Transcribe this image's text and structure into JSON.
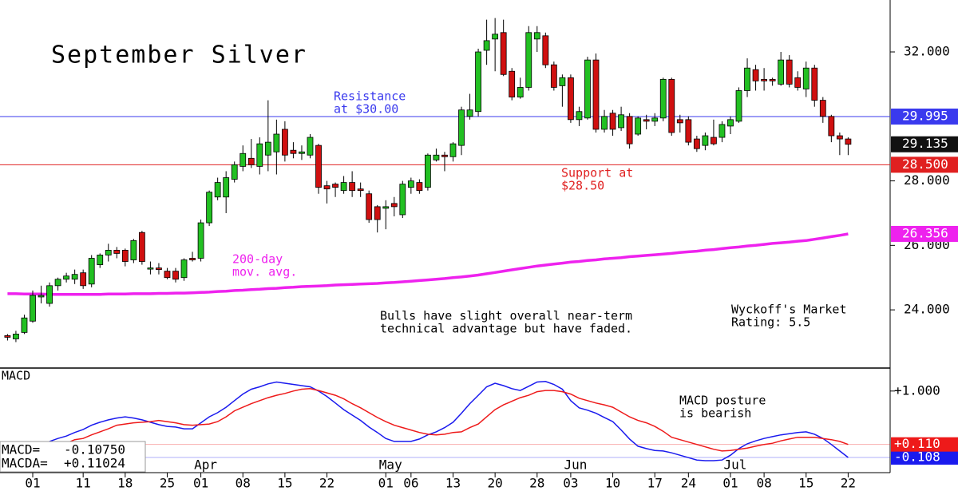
{
  "chart_data": [
    {
      "type": "candlestick",
      "title": "September Silver",
      "categories": [
        null,
        null,
        null,
        "01",
        null,
        null,
        null,
        null,
        null,
        "11",
        null,
        null,
        null,
        null,
        "18",
        null,
        null,
        null,
        null,
        "25",
        null,
        null,
        null,
        "01",
        null,
        null,
        null,
        null,
        "08",
        null,
        null,
        null,
        null,
        "15",
        null,
        null,
        null,
        null,
        "22",
        null,
        null,
        null,
        null,
        null,
        null,
        "01",
        null,
        null,
        "06",
        null,
        null,
        null,
        null,
        "13",
        null,
        null,
        null,
        null,
        "20",
        null,
        null,
        null,
        null,
        "28",
        null,
        null,
        null,
        "03",
        null,
        null,
        null,
        null,
        "10",
        null,
        null,
        null,
        null,
        "17",
        null,
        null,
        null,
        "24",
        null,
        null,
        null,
        null,
        "01",
        null,
        null,
        null,
        "08",
        null,
        null,
        null,
        null,
        "15",
        null,
        null,
        null,
        null,
        "22"
      ],
      "months": [
        null,
        null,
        null,
        null,
        null,
        null,
        null,
        null,
        null,
        null,
        null,
        null,
        null,
        null,
        null,
        null,
        null,
        null,
        null,
        null,
        null,
        null,
        null,
        "Apr",
        null,
        null,
        null,
        null,
        null,
        null,
        null,
        null,
        null,
        null,
        null,
        null,
        null,
        null,
        null,
        null,
        null,
        null,
        null,
        null,
        null,
        "May",
        null,
        null,
        null,
        null,
        null,
        null,
        null,
        null,
        null,
        null,
        null,
        null,
        null,
        null,
        null,
        null,
        null,
        null,
        null,
        null,
        null,
        "Jun",
        null,
        null,
        null,
        null,
        null,
        null,
        null,
        null,
        null,
        null,
        null,
        null,
        null,
        null,
        null,
        null,
        null,
        null,
        "Jul",
        null,
        null,
        null,
        null,
        null,
        null,
        null,
        null,
        null,
        null,
        null,
        null,
        null,
        null
      ],
      "open": [
        23.2,
        23.1,
        23.3,
        23.65,
        24.4,
        24.2,
        24.75,
        24.95,
        24.95,
        25.15,
        24.8,
        25.4,
        25.7,
        25.85,
        25.85,
        25.55,
        26.4,
        25.3,
        25.3,
        25.2,
        25.2,
        25.0,
        25.6,
        25.6,
        26.7,
        27.5,
        27.5,
        28.05,
        28.45,
        28.7,
        28.45,
        28.8,
        28.9,
        29.6,
        28.95,
        28.85,
        28.8,
        29.1,
        27.85,
        27.9,
        27.7,
        27.95,
        27.75,
        27.6,
        27.2,
        27.15,
        27.3,
        26.95,
        27.8,
        27.95,
        27.8,
        28.65,
        28.8,
        28.75,
        29.1,
        30.0,
        30.15,
        32.05,
        32.4,
        32.6,
        31.4,
        30.6,
        30.9,
        32.4,
        32.5,
        31.6,
        30.95,
        31.2,
        29.9,
        29.95,
        31.75,
        29.6,
        30.1,
        29.65,
        30.0,
        29.45,
        29.9,
        29.85,
        29.95,
        31.15,
        29.9,
        29.9,
        29.3,
        29.1,
        29.35,
        29.35,
        29.7,
        29.85,
        30.8,
        31.45,
        31.15,
        31.15,
        31.0,
        31.75,
        31.2,
        30.85,
        31.5,
        30.5,
        30.0,
        29.4,
        29.3
      ],
      "high": [
        23.25,
        23.35,
        23.85,
        24.6,
        24.75,
        24.85,
        25.0,
        25.15,
        25.25,
        25.25,
        25.7,
        25.75,
        26.05,
        25.95,
        25.9,
        26.2,
        26.45,
        25.5,
        25.45,
        25.3,
        25.3,
        25.6,
        25.8,
        26.8,
        27.7,
        28.1,
        28.3,
        28.6,
        29.1,
        29.3,
        29.35,
        30.5,
        29.9,
        29.85,
        29.2,
        29.1,
        29.45,
        29.15,
        28.0,
        27.95,
        28.15,
        28.3,
        27.95,
        27.7,
        27.25,
        27.4,
        27.5,
        28.0,
        28.1,
        28.05,
        28.85,
        29.0,
        28.9,
        29.2,
        30.3,
        30.7,
        32.1,
        33.0,
        33.05,
        33.0,
        31.5,
        31.2,
        32.8,
        32.8,
        32.6,
        31.7,
        31.3,
        31.3,
        30.3,
        31.85,
        31.95,
        30.2,
        30.2,
        30.3,
        30.1,
        30.0,
        30.05,
        30.1,
        31.2,
        31.2,
        30.05,
        30.0,
        29.4,
        29.5,
        29.9,
        29.85,
        30.0,
        30.9,
        31.8,
        31.6,
        31.5,
        31.2,
        32.0,
        31.9,
        31.4,
        31.7,
        31.6,
        30.6,
        30.05,
        29.5,
        29.35
      ],
      "low": [
        23.05,
        23.0,
        23.25,
        23.6,
        24.2,
        24.1,
        24.6,
        24.85,
        24.8,
        24.65,
        24.7,
        25.3,
        25.5,
        25.6,
        25.35,
        25.45,
        25.4,
        25.1,
        25.1,
        24.95,
        24.85,
        24.9,
        25.5,
        25.5,
        26.6,
        27.4,
        27.0,
        27.95,
        28.3,
        28.4,
        28.2,
        28.3,
        28.2,
        28.6,
        28.7,
        28.65,
        28.7,
        27.6,
        27.3,
        27.5,
        27.6,
        27.5,
        27.5,
        26.7,
        26.4,
        26.5,
        26.9,
        26.85,
        27.6,
        27.6,
        27.7,
        28.6,
        28.3,
        28.6,
        28.8,
        29.9,
        30.0,
        31.6,
        31.4,
        31.25,
        30.5,
        30.55,
        30.8,
        32.0,
        31.5,
        30.8,
        30.3,
        29.8,
        29.7,
        29.9,
        29.5,
        29.5,
        29.4,
        29.55,
        29.0,
        29.4,
        29.6,
        29.7,
        29.85,
        29.4,
        29.5,
        29.1,
        28.9,
        28.95,
        29.1,
        29.2,
        29.45,
        29.8,
        30.6,
        30.8,
        30.8,
        30.95,
        30.95,
        30.9,
        30.8,
        30.6,
        30.3,
        29.8,
        29.2,
        28.8,
        28.8
      ],
      "close": [
        23.15,
        23.25,
        23.75,
        24.45,
        24.45,
        24.75,
        24.95,
        25.05,
        25.1,
        24.75,
        25.6,
        25.7,
        25.85,
        25.75,
        25.5,
        26.15,
        25.5,
        25.3,
        25.25,
        25.0,
        24.95,
        25.55,
        25.55,
        26.7,
        27.65,
        27.95,
        28.1,
        28.5,
        28.85,
        28.5,
        29.15,
        29.2,
        29.45,
        28.8,
        28.85,
        28.9,
        29.35,
        27.8,
        27.75,
        27.8,
        27.95,
        27.7,
        27.7,
        26.8,
        26.8,
        27.2,
        27.2,
        27.9,
        28.0,
        27.7,
        28.8,
        28.8,
        28.75,
        29.15,
        30.2,
        30.2,
        32.0,
        32.35,
        32.55,
        31.3,
        30.6,
        30.9,
        32.6,
        32.6,
        31.6,
        30.9,
        31.2,
        29.9,
        30.15,
        31.75,
        29.6,
        30.0,
        29.6,
        30.05,
        29.15,
        29.95,
        29.85,
        29.95,
        31.15,
        29.5,
        29.8,
        29.2,
        29.0,
        29.4,
        29.15,
        29.75,
        29.9,
        30.8,
        31.5,
        31.1,
        31.1,
        31.1,
        31.75,
        31.0,
        30.9,
        31.5,
        30.5,
        30.0,
        29.4,
        29.3,
        29.135
      ],
      "up_color": "#22c022",
      "down_color": "#d01010",
      "last_close_label": "29.135",
      "ylim": [
        22.22,
        33.61
      ],
      "yticks": [
        {
          "value": 24,
          "label": "24.000"
        },
        {
          "value": 26,
          "label": "26.000"
        },
        {
          "value": 28,
          "label": "28.000"
        },
        {
          "value": 32,
          "label": "32.000"
        }
      ],
      "hlines": [
        {
          "value": 29.995,
          "label": "29.995",
          "color": "#3a3aee",
          "text": [
            "Resistance",
            "at $30.00"
          ]
        },
        {
          "value": 28.5,
          "label": "28.500",
          "color": "#e02020",
          "text": [
            "Support at",
            "$28.50"
          ]
        }
      ],
      "moving_average": {
        "color": "#ee22ee",
        "text": [
          "200-day",
          "mov. avg."
        ],
        "last_label": "26.356",
        "values": [
          24.5,
          24.5,
          24.49,
          24.49,
          24.49,
          24.48,
          24.48,
          24.48,
          24.48,
          24.48,
          24.48,
          24.48,
          24.49,
          24.49,
          24.49,
          24.5,
          24.5,
          24.5,
          24.51,
          24.51,
          24.52,
          24.52,
          24.53,
          24.54,
          24.55,
          24.57,
          24.58,
          24.6,
          24.61,
          24.63,
          24.64,
          24.66,
          24.67,
          24.69,
          24.7,
          24.72,
          24.73,
          24.74,
          24.75,
          24.77,
          24.78,
          24.79,
          24.8,
          24.81,
          24.82,
          24.84,
          24.85,
          24.87,
          24.89,
          24.91,
          24.93,
          24.95,
          24.97,
          25.0,
          25.02,
          25.05,
          25.08,
          25.12,
          25.16,
          25.2,
          25.24,
          25.28,
          25.32,
          25.36,
          25.39,
          25.42,
          25.45,
          25.48,
          25.5,
          25.53,
          25.55,
          25.58,
          25.6,
          25.62,
          25.65,
          25.67,
          25.69,
          25.71,
          25.73,
          25.75,
          25.78,
          25.8,
          25.82,
          25.85,
          25.87,
          25.9,
          25.93,
          25.95,
          25.98,
          26.0,
          26.03,
          26.06,
          26.08,
          26.1,
          26.13,
          26.15,
          26.19,
          26.23,
          26.27,
          26.31,
          26.356
        ]
      },
      "annotations": [
        {
          "lines": [
            "Bulls have slight overall near-term",
            "technical advantage but have faded."
          ]
        },
        {
          "lines": [
            "Wyckoff's Market",
            "Rating: 5.5"
          ]
        }
      ]
    },
    {
      "type": "line",
      "title": "MACD",
      "ylim": [
        -0.36,
        1.37
      ],
      "yticks": [
        {
          "value": 1,
          "label": "+1.000"
        }
      ],
      "series": [
        {
          "name": "MACD=",
          "color": "#1a1aee",
          "last_label": "-0.10750",
          "axis_label": "-0.108",
          "values": [
            null,
            null,
            null,
            null,
            null,
            0.16,
            0.21,
            0.25,
            0.31,
            0.36,
            0.43,
            0.48,
            0.52,
            0.55,
            0.57,
            0.55,
            0.52,
            0.48,
            0.44,
            0.41,
            0.4,
            0.37,
            0.37,
            0.47,
            0.57,
            0.64,
            0.73,
            0.84,
            0.95,
            1.03,
            1.07,
            1.12,
            1.15,
            1.13,
            1.11,
            1.09,
            1.07,
            1.0,
            0.91,
            0.8,
            0.69,
            0.6,
            0.51,
            0.4,
            0.31,
            0.21,
            0.16,
            0.16,
            0.16,
            0.2,
            0.27,
            0.32,
            0.39,
            0.48,
            0.63,
            0.79,
            0.93,
            1.07,
            1.13,
            1.09,
            1.04,
            1.01,
            1.08,
            1.15,
            1.16,
            1.11,
            1.03,
            0.84,
            0.72,
            0.68,
            0.63,
            0.56,
            0.49,
            0.35,
            0.2,
            0.08,
            0.04,
            0.01,
            0,
            -0.03,
            -0.07,
            -0.11,
            -0.15,
            -0.16,
            -0.16,
            -0.15,
            -0.07,
            0.04,
            0.12,
            0.17,
            0.21,
            0.24,
            0.27,
            0.29,
            0.31,
            0.32,
            0.28,
            0.21,
            0.11,
            0,
            -0.1075
          ]
        },
        {
          "name": "MACDA=",
          "color": "#ee1a1a",
          "last_label": "+0.11024",
          "axis_label": "+0.110",
          "values": [
            null,
            null,
            null,
            null,
            null,
            0.07,
            0.11,
            0.13,
            0.19,
            0.21,
            0.27,
            0.32,
            0.37,
            0.43,
            0.45,
            0.47,
            0.48,
            0.49,
            0.51,
            0.49,
            0.47,
            0.44,
            0.43,
            0.44,
            0.45,
            0.49,
            0.57,
            0.67,
            0.73,
            0.79,
            0.84,
            0.89,
            0.93,
            0.96,
            1.0,
            1.03,
            1.04,
            1.01,
            0.97,
            0.93,
            0.87,
            0.79,
            0.72,
            0.64,
            0.56,
            0.49,
            0.43,
            0.39,
            0.35,
            0.31,
            0.28,
            0.27,
            0.28,
            0.31,
            0.32,
            0.39,
            0.45,
            0.57,
            0.69,
            0.77,
            0.83,
            0.89,
            0.93,
            0.99,
            1.01,
            1.01,
            0.99,
            0.95,
            0.88,
            0.84,
            0.8,
            0.77,
            0.73,
            0.65,
            0.57,
            0.51,
            0.47,
            0.41,
            0.33,
            0.23,
            0.19,
            0.15,
            0.11,
            0.07,
            0.03,
            0,
            0.01,
            0.03,
            0.05,
            0.08,
            0.11,
            0.13,
            0.17,
            0.2,
            0.23,
            0.23,
            0.23,
            0.21,
            0.19,
            0.16,
            0.11024
          ]
        }
      ],
      "annotations": [
        {
          "lines": [
            "MACD posture",
            "is bearish"
          ]
        }
      ]
    }
  ]
}
